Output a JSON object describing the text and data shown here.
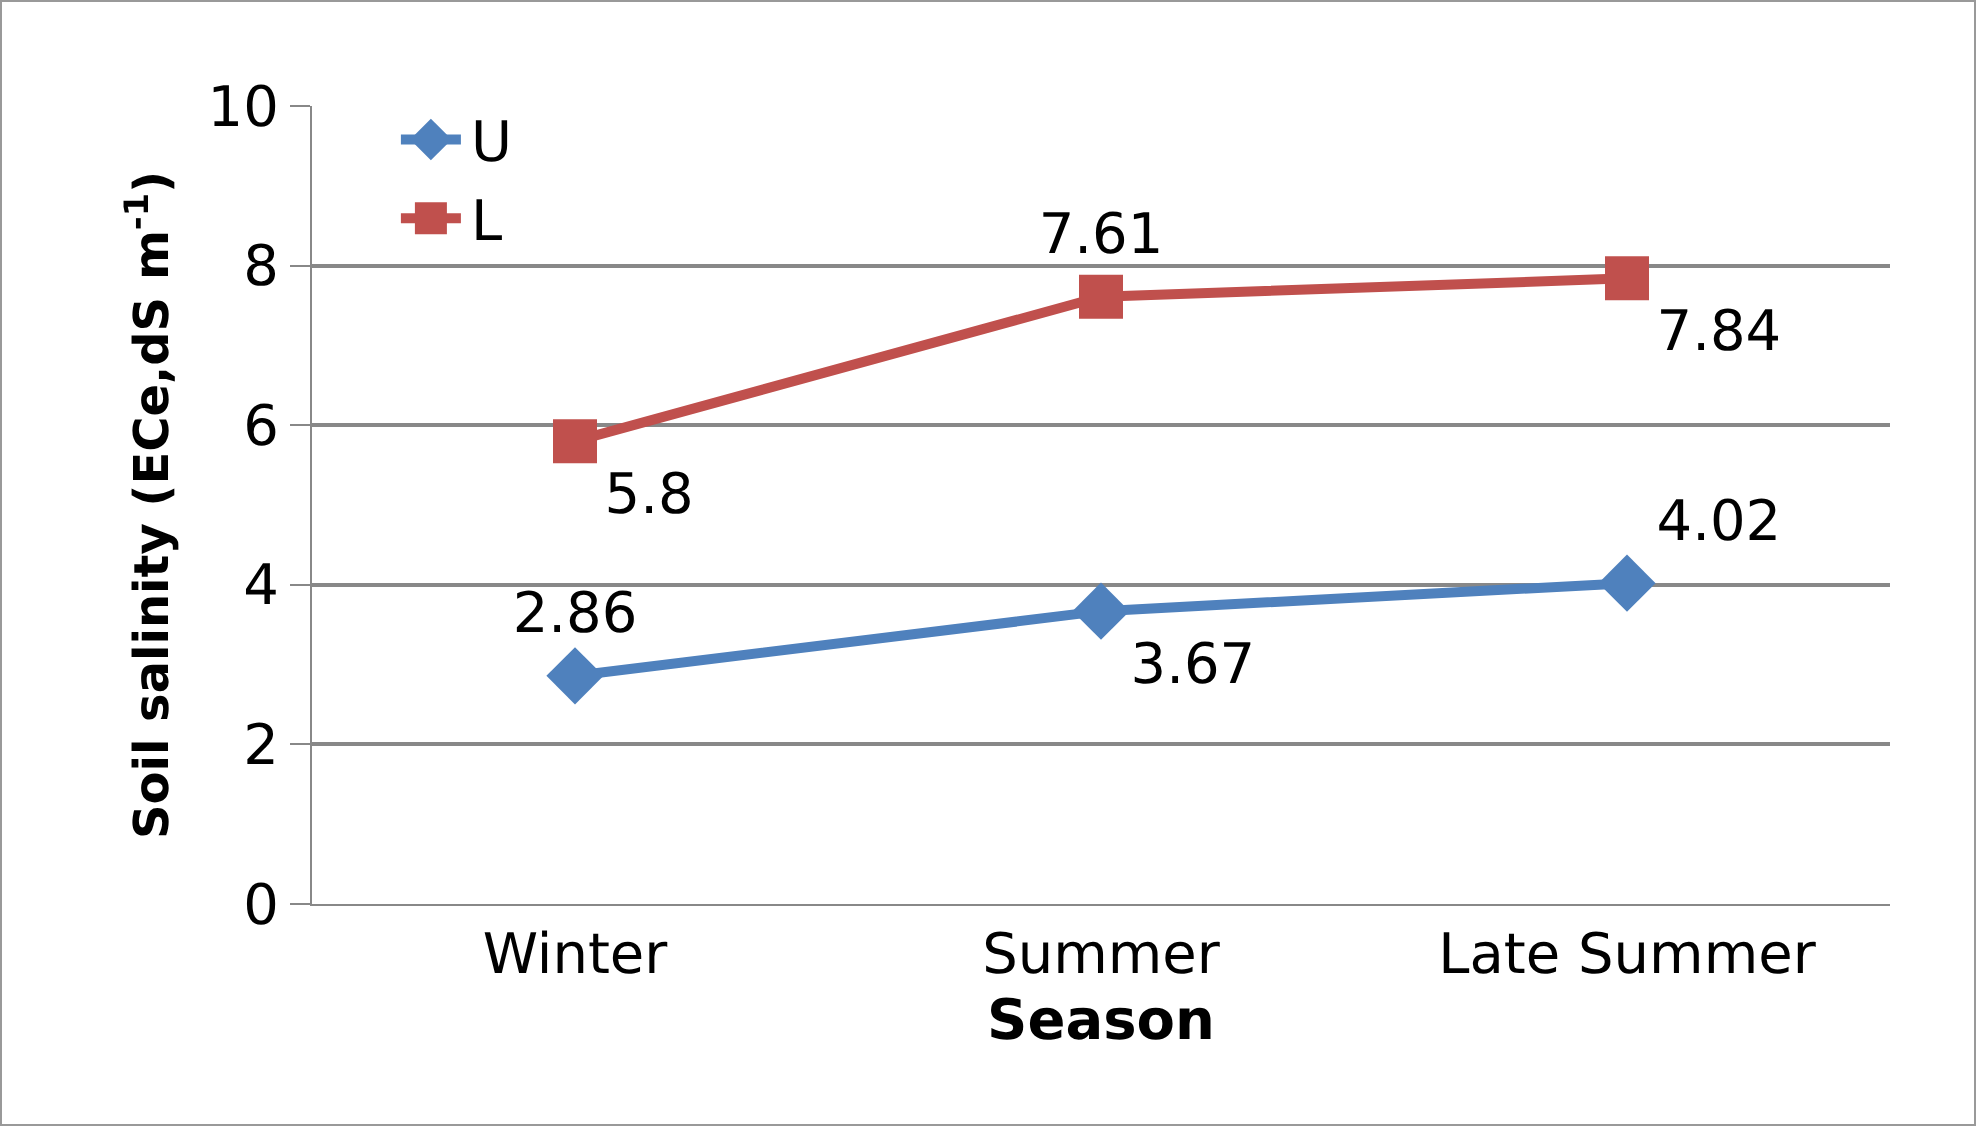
{
  "chart_data": {
    "type": "line",
    "xlabel": "Season",
    "ylabel": "Soil salinity (ECe,dS m$^{-1}$)",
    "categories": [
      "Winter",
      "Summer",
      "Late Summer"
    ],
    "series": [
      {
        "name": "U",
        "color": "#4f81bd",
        "values": [
          2.86,
          3.67,
          4.02
        ],
        "marker": "diamond"
      },
      {
        "name": "L",
        "color": "#c0504d",
        "values": [
          5.8,
          7.61,
          7.84
        ],
        "marker": "square"
      }
    ],
    "ylim": [
      0,
      10
    ],
    "yticks": [
      0,
      2,
      4,
      6,
      8,
      10
    ],
    "grid": "y",
    "legend": "top left",
    "data_labels": true,
    "line_style": "solid"
  }
}
